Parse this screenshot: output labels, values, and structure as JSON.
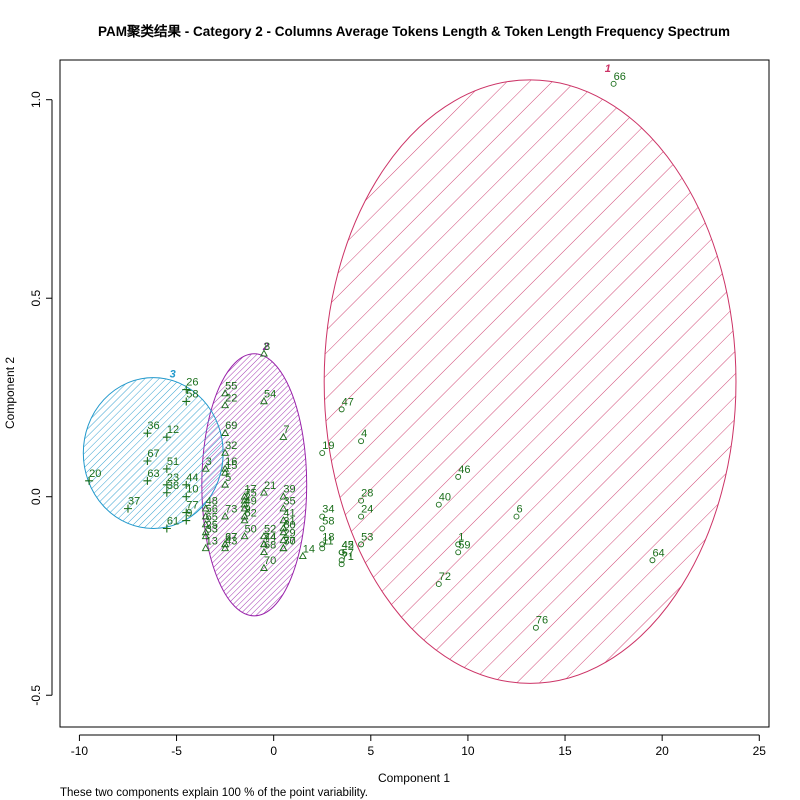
{
  "chart_data": {
    "type": "scatter",
    "title": "PAM聚类结果 - Category  2  - Columns  Average Tokens Length  &  Token Length Frequency Spectrum",
    "xlabel": "Component 1",
    "ylabel": "Component 2",
    "footnote": "These two components explain 100 % of the point variability.",
    "xlim": [
      -11,
      25.5
    ],
    "ylim": [
      -0.58,
      1.1
    ],
    "xticks": [
      -10,
      -5,
      0,
      5,
      10,
      15,
      20,
      25
    ],
    "yticks": [
      -0.5,
      0.0,
      0.5,
      1.0
    ],
    "xtick_labels": [
      "-10",
      "-5",
      "0",
      "5",
      "10",
      "15",
      "20",
      "25"
    ],
    "ytick_labels": [
      "-0.5",
      "0.0",
      "0.5",
      "1.0"
    ],
    "grid": false,
    "colors": {
      "cluster_1": "#cc3366",
      "cluster_2": "#9922aa",
      "cluster_3": "#2299cc",
      "labels": "#1a6e1a",
      "frame": "#000000"
    },
    "clusters": [
      {
        "name": "1",
        "marker": "circle",
        "color": "#cc3366",
        "center": [
          13.2,
          0.29
        ],
        "semi_axes": [
          10.6,
          0.76
        ],
        "label_at": [
          17.2,
          1.07
        ]
      },
      {
        "name": "2",
        "marker": "triangle",
        "color": "#9922aa",
        "center": [
          -1.0,
          0.03
        ],
        "semi_axes": [
          2.7,
          0.33
        ],
        "label_at": [
          -0.4,
          0.37
        ]
      },
      {
        "name": "3",
        "marker": "plus",
        "color": "#2299cc",
        "center": [
          -6.2,
          0.11
        ],
        "semi_axes": [
          3.6,
          0.19
        ],
        "label_at": [
          -5.2,
          0.3
        ]
      }
    ],
    "series": [
      {
        "name": "1",
        "marker": "circle",
        "points": [
          {
            "id": "66",
            "x": 17.5,
            "y": 1.04
          },
          {
            "id": "47",
            "x": 3.5,
            "y": 0.22
          },
          {
            "id": "4",
            "x": 4.5,
            "y": 0.14
          },
          {
            "id": "19",
            "x": 2.5,
            "y": 0.11
          },
          {
            "id": "46",
            "x": 9.5,
            "y": 0.05
          },
          {
            "id": "28",
            "x": 4.5,
            "y": -0.01
          },
          {
            "id": "40",
            "x": 8.5,
            "y": -0.02
          },
          {
            "id": "24",
            "x": 4.5,
            "y": -0.05
          },
          {
            "id": "6",
            "x": 12.5,
            "y": -0.05
          },
          {
            "id": "34",
            "x": 2.5,
            "y": -0.05
          },
          {
            "id": "58",
            "x": 2.5,
            "y": -0.08
          },
          {
            "id": "53",
            "x": 4.5,
            "y": -0.12
          },
          {
            "id": "1",
            "x": 9.5,
            "y": -0.12
          },
          {
            "id": "18",
            "x": 2.5,
            "y": -0.12
          },
          {
            "id": "11",
            "x": 2.5,
            "y": -0.13
          },
          {
            "id": "59",
            "x": 9.5,
            "y": -0.14
          },
          {
            "id": "45",
            "x": 3.5,
            "y": -0.14
          },
          {
            "id": "42",
            "x": 3.5,
            "y": -0.14
          },
          {
            "id": "57",
            "x": 3.5,
            "y": -0.16
          },
          {
            "id": "71",
            "x": 3.5,
            "y": -0.17
          },
          {
            "id": "64",
            "x": 19.5,
            "y": -0.16
          },
          {
            "id": "72",
            "x": 8.5,
            "y": -0.22
          },
          {
            "id": "76",
            "x": 13.5,
            "y": -0.33
          }
        ]
      },
      {
        "name": "2",
        "marker": "triangle",
        "points": [
          {
            "id": "8",
            "x": -0.5,
            "y": 0.36
          },
          {
            "id": "55",
            "x": -2.5,
            "y": 0.26
          },
          {
            "id": "54",
            "x": -0.5,
            "y": 0.24
          },
          {
            "id": "22",
            "x": -2.5,
            "y": 0.23
          },
          {
            "id": "69",
            "x": -2.5,
            "y": 0.16
          },
          {
            "id": "7",
            "x": 0.5,
            "y": 0.15
          },
          {
            "id": "32",
            "x": -2.5,
            "y": 0.11
          },
          {
            "id": "3",
            "x": -3.5,
            "y": 0.07
          },
          {
            "id": "16",
            "x": -2.5,
            "y": 0.07
          },
          {
            "id": "15",
            "x": -2.5,
            "y": 0.06
          },
          {
            "id": "5",
            "x": -2.5,
            "y": 0.03
          },
          {
            "id": "21",
            "x": -0.5,
            "y": 0.01
          },
          {
            "id": "39",
            "x": 0.5,
            "y": 0.0
          },
          {
            "id": "17",
            "x": -1.5,
            "y": 0.0
          },
          {
            "id": "2",
            "x": -1.5,
            "y": -0.02
          },
          {
            "id": "35",
            "x": 0.5,
            "y": -0.03
          },
          {
            "id": "49",
            "x": -1.5,
            "y": -0.03
          },
          {
            "id": "48",
            "x": -3.5,
            "y": -0.03
          },
          {
            "id": "56",
            "x": -3.5,
            "y": -0.05
          },
          {
            "id": "73",
            "x": -2.5,
            "y": -0.05
          },
          {
            "id": "9",
            "x": -1.5,
            "y": -0.05
          },
          {
            "id": "62",
            "x": -1.5,
            "y": -0.06
          },
          {
            "id": "65",
            "x": -3.5,
            "y": -0.07
          },
          {
            "id": "41",
            "x": 0.5,
            "y": -0.06
          },
          {
            "id": "31",
            "x": 0.5,
            "y": -0.08
          },
          {
            "id": "25",
            "x": -3.5,
            "y": -0.09
          },
          {
            "id": "33",
            "x": -3.5,
            "y": -0.1
          },
          {
            "id": "60",
            "x": 0.5,
            "y": -0.09
          },
          {
            "id": "52",
            "x": -0.5,
            "y": -0.1
          },
          {
            "id": "44",
            "x": -0.5,
            "y": -0.12
          },
          {
            "id": "29",
            "x": 0.5,
            "y": -0.11
          },
          {
            "id": "30",
            "x": 0.5,
            "y": -0.13
          },
          {
            "id": "43",
            "x": -2.5,
            "y": -0.13
          },
          {
            "id": "13",
            "x": -3.5,
            "y": -0.13
          },
          {
            "id": "14",
            "x": 1.5,
            "y": -0.15
          },
          {
            "id": "70",
            "x": -0.5,
            "y": -0.18
          },
          {
            "id": "68",
            "x": -0.5,
            "y": -0.14
          },
          {
            "id": "74",
            "x": -0.5,
            "y": -0.12
          },
          {
            "id": "67",
            "x": -2.5,
            "y": -0.12
          },
          {
            "id": "27",
            "x": -2.5,
            "y": -0.12
          },
          {
            "id": "50",
            "x": -1.5,
            "y": -0.1
          },
          {
            "id": "75",
            "x": -1.5,
            "y": -0.01
          },
          {
            "id": "77",
            "x": 0.5,
            "y": -0.13
          }
        ]
      },
      {
        "name": "3",
        "marker": "plus",
        "points": [
          {
            "id": "26",
            "x": -4.5,
            "y": 0.27
          },
          {
            "id": "58",
            "x": -4.5,
            "y": 0.24
          },
          {
            "id": "36",
            "x": -6.5,
            "y": 0.16
          },
          {
            "id": "12",
            "x": -5.5,
            "y": 0.15
          },
          {
            "id": "67",
            "x": -6.5,
            "y": 0.09
          },
          {
            "id": "51",
            "x": -5.5,
            "y": 0.07
          },
          {
            "id": "63",
            "x": -6.5,
            "y": 0.04
          },
          {
            "id": "44",
            "x": -4.5,
            "y": 0.03
          },
          {
            "id": "20",
            "x": -9.5,
            "y": 0.04
          },
          {
            "id": "23",
            "x": -5.5,
            "y": 0.03
          },
          {
            "id": "38",
            "x": -5.5,
            "y": 0.01
          },
          {
            "id": "10",
            "x": -4.5,
            "y": 0.0
          },
          {
            "id": "37",
            "x": -7.5,
            "y": -0.03
          },
          {
            "id": "77",
            "x": -4.5,
            "y": -0.04
          },
          {
            "id": "61",
            "x": -5.5,
            "y": -0.08
          },
          {
            "id": "9",
            "x": -4.5,
            "y": -0.06
          }
        ]
      }
    ]
  }
}
